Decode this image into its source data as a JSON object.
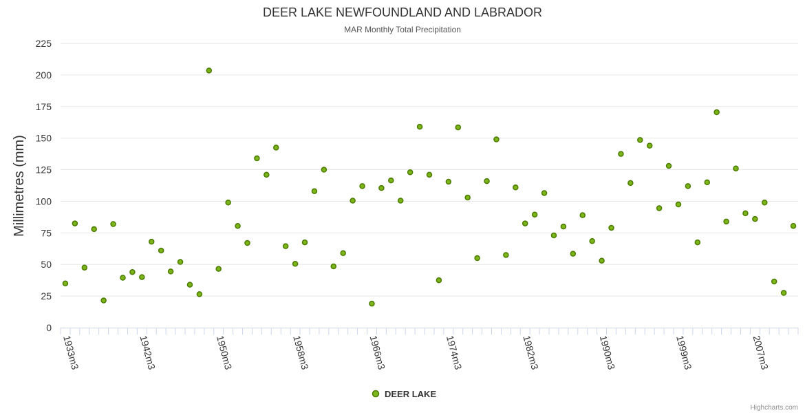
{
  "chart_data": {
    "type": "scatter",
    "title": "DEER LAKE NEWFOUNDLAND AND LABRADOR",
    "subtitle": "MAR Monthly Total Precipitation",
    "xlabel": "",
    "ylabel": "Millimetres (mm)",
    "ylim": [
      0,
      225
    ],
    "yticks": [
      0,
      25,
      50,
      75,
      100,
      125,
      150,
      175,
      200,
      225
    ],
    "xtick_labels": [
      "1933m3",
      "1942m3",
      "1950m3",
      "1958m3",
      "1966m3",
      "1974m3",
      "1982m3",
      "1990m3",
      "1999m3",
      "2007m3"
    ],
    "xtick_positions": [
      0,
      8,
      16,
      24,
      32,
      40,
      48,
      56,
      64,
      72
    ],
    "x_count": 77,
    "grid": true,
    "legend_position": "bottom-center",
    "series": [
      {
        "name": "DEER LAKE",
        "color": "#7cb518",
        "stroke": "#4a7a00",
        "values": [
          35,
          82.5,
          47.5,
          78,
          21.5,
          82,
          39.5,
          44,
          40,
          68,
          61,
          44.5,
          52,
          34,
          26.5,
          203.5,
          46.5,
          99,
          80.5,
          67,
          134,
          121,
          142.5,
          64.5,
          50.5,
          67.5,
          108,
          125,
          48.5,
          59,
          100.5,
          112,
          19,
          110.5,
          116.5,
          100.5,
          123,
          159,
          121,
          37.5,
          115.5,
          158.5,
          103,
          55,
          116,
          149,
          57.5,
          111,
          82.5,
          89.5,
          106.5,
          73,
          80,
          58.5,
          89,
          68.5,
          53,
          79,
          137.5,
          114.5,
          148.5,
          144,
          94.5,
          128,
          97.5,
          112,
          67.5,
          115,
          170.5,
          84,
          126,
          90.5,
          86,
          99,
          36.5,
          27.5,
          80.5
        ]
      }
    ]
  },
  "credit": "Highcharts.com"
}
